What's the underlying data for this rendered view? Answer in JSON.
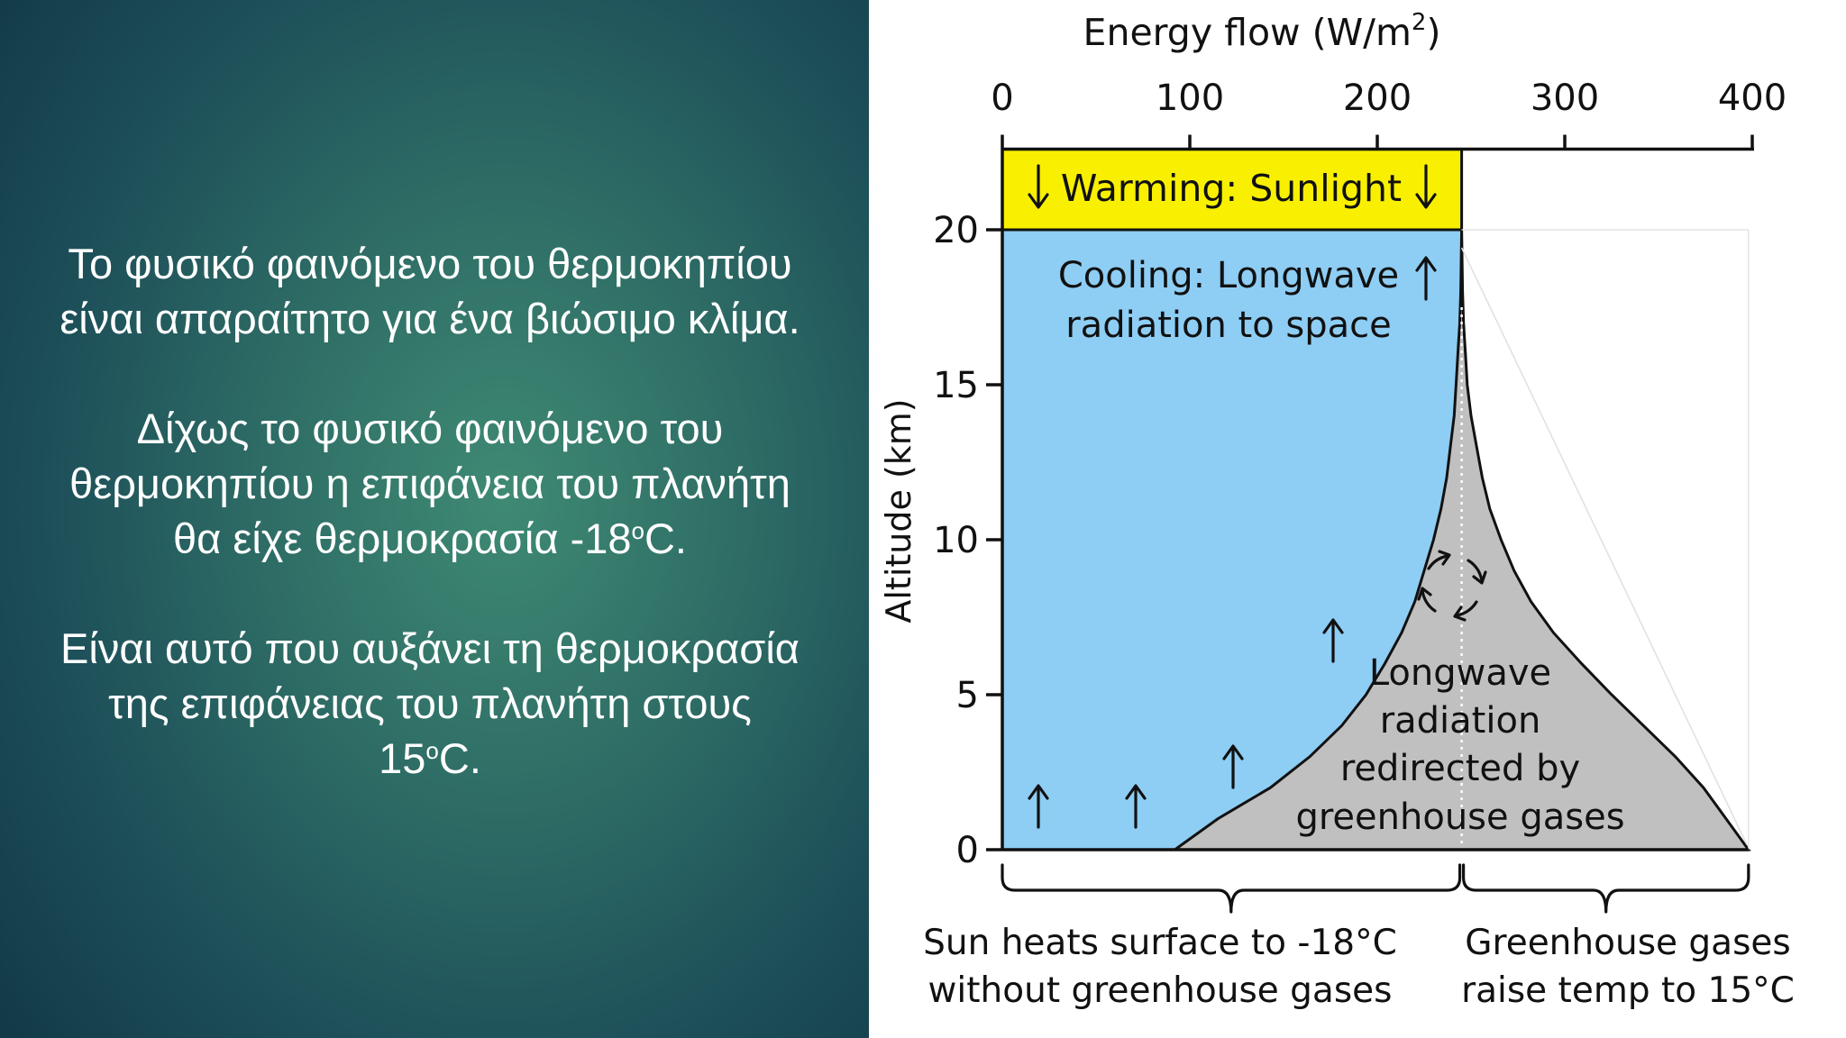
{
  "slide": {
    "paragraph1_line1": "Το φυσικό φαινόμενο του θερμοκηπίου",
    "paragraph1_line2": "είναι απαραίτητο για ένα βιώσιμο κλίμα.",
    "paragraph2_line1": "Δίχως το φυσικό φαινόμενο του",
    "paragraph2_line2": "θερμοκηπίου η επιφάνεια του πλανήτη",
    "paragraph2_line3_prefix": "θα είχε θερμοκρασία -18",
    "paragraph2_line3_sup": "ο",
    "paragraph2_line3_suffix": "C.",
    "paragraph3_line1": "Είναι αυτό που αυξάνει τη θερμοκρασία",
    "paragraph3_line2": "της επιφάνειας του πλανήτη στους",
    "paragraph3_line3_prefix": "15",
    "paragraph3_line3_sup": "ο",
    "paragraph3_line3_suffix": "C."
  },
  "chart_data": {
    "type": "area",
    "xlabel_text": "Energy flow (W/m",
    "xlabel_sup": "2",
    "xlabel_close": ")",
    "ylabel": "Altitude (km)",
    "xlim": [
      0,
      400
    ],
    "ylim": [
      0,
      20
    ],
    "x_ticks": [
      0,
      100,
      200,
      300,
      400
    ],
    "y_ticks": [
      0,
      5,
      10,
      15,
      20
    ],
    "x_tick_labels": [
      "0",
      "100",
      "200",
      "300",
      "400"
    ],
    "y_tick_labels": [
      "0",
      "5",
      "10",
      "15",
      "20"
    ],
    "x_axis_position": "top",
    "grid": false,
    "regions": {
      "sunlight": {
        "label": "Warming: Sunlight",
        "x_range": [
          0,
          245
        ],
        "altitude_range": [
          20,
          22.6
        ],
        "color": "#f8f000"
      },
      "cooling": {
        "label_line1": "Cooling: Longwave",
        "label_line2": "radiation to space",
        "flow_at_top": 245,
        "color": "#8ecdf4"
      },
      "greenhouse": {
        "label_line1": "Longwave",
        "label_line2": "radiation",
        "label_line3": "redirected by",
        "label_line4": "greenhouse gases",
        "color": "#c0c0c0",
        "outgoing_boundary": [
          [
            92,
            0
          ],
          [
            115,
            1
          ],
          [
            143,
            2
          ],
          [
            164,
            3
          ],
          [
            181,
            4
          ],
          [
            194,
            5
          ],
          [
            204,
            6
          ],
          [
            213,
            7
          ],
          [
            220,
            8
          ],
          [
            225,
            9
          ],
          [
            230,
            10
          ],
          [
            234,
            11
          ],
          [
            237,
            12
          ],
          [
            239,
            13
          ],
          [
            241,
            14
          ],
          [
            242,
            15
          ],
          [
            243,
            16
          ],
          [
            244,
            17
          ],
          [
            244.5,
            18
          ],
          [
            245,
            20
          ]
        ],
        "surface_boundary": [
          [
            245,
            20
          ],
          [
            245.5,
            18
          ],
          [
            246,
            17
          ],
          [
            247,
            16
          ],
          [
            248,
            15
          ],
          [
            250,
            14
          ],
          [
            253,
            13
          ],
          [
            256,
            12
          ],
          [
            260,
            11
          ],
          [
            266,
            10
          ],
          [
            273,
            9
          ],
          [
            282,
            8
          ],
          [
            294,
            7
          ],
          [
            309,
            6
          ],
          [
            325,
            5
          ],
          [
            342,
            4
          ],
          [
            359,
            3
          ],
          [
            374,
            2
          ],
          [
            386,
            1
          ],
          [
            398,
            0
          ]
        ]
      }
    },
    "brackets": {
      "left": {
        "x_range": [
          0,
          245
        ],
        "label_line1": "Sun heats surface to -18°C",
        "label_line2": "without greenhouse gases"
      },
      "right": {
        "x_range": [
          245,
          398
        ],
        "label_line1": "Greenhouse gases",
        "label_line2": "raise temp to 15°C"
      }
    },
    "colors": {
      "sunlight": "#f8f000",
      "cooling": "#8ecdf4",
      "greenhouse": "#c0c0c0",
      "axis": "#111111"
    },
    "icons": [
      "arrow-down-icon",
      "arrow-up-icon",
      "circular-arrows-icon"
    ]
  }
}
